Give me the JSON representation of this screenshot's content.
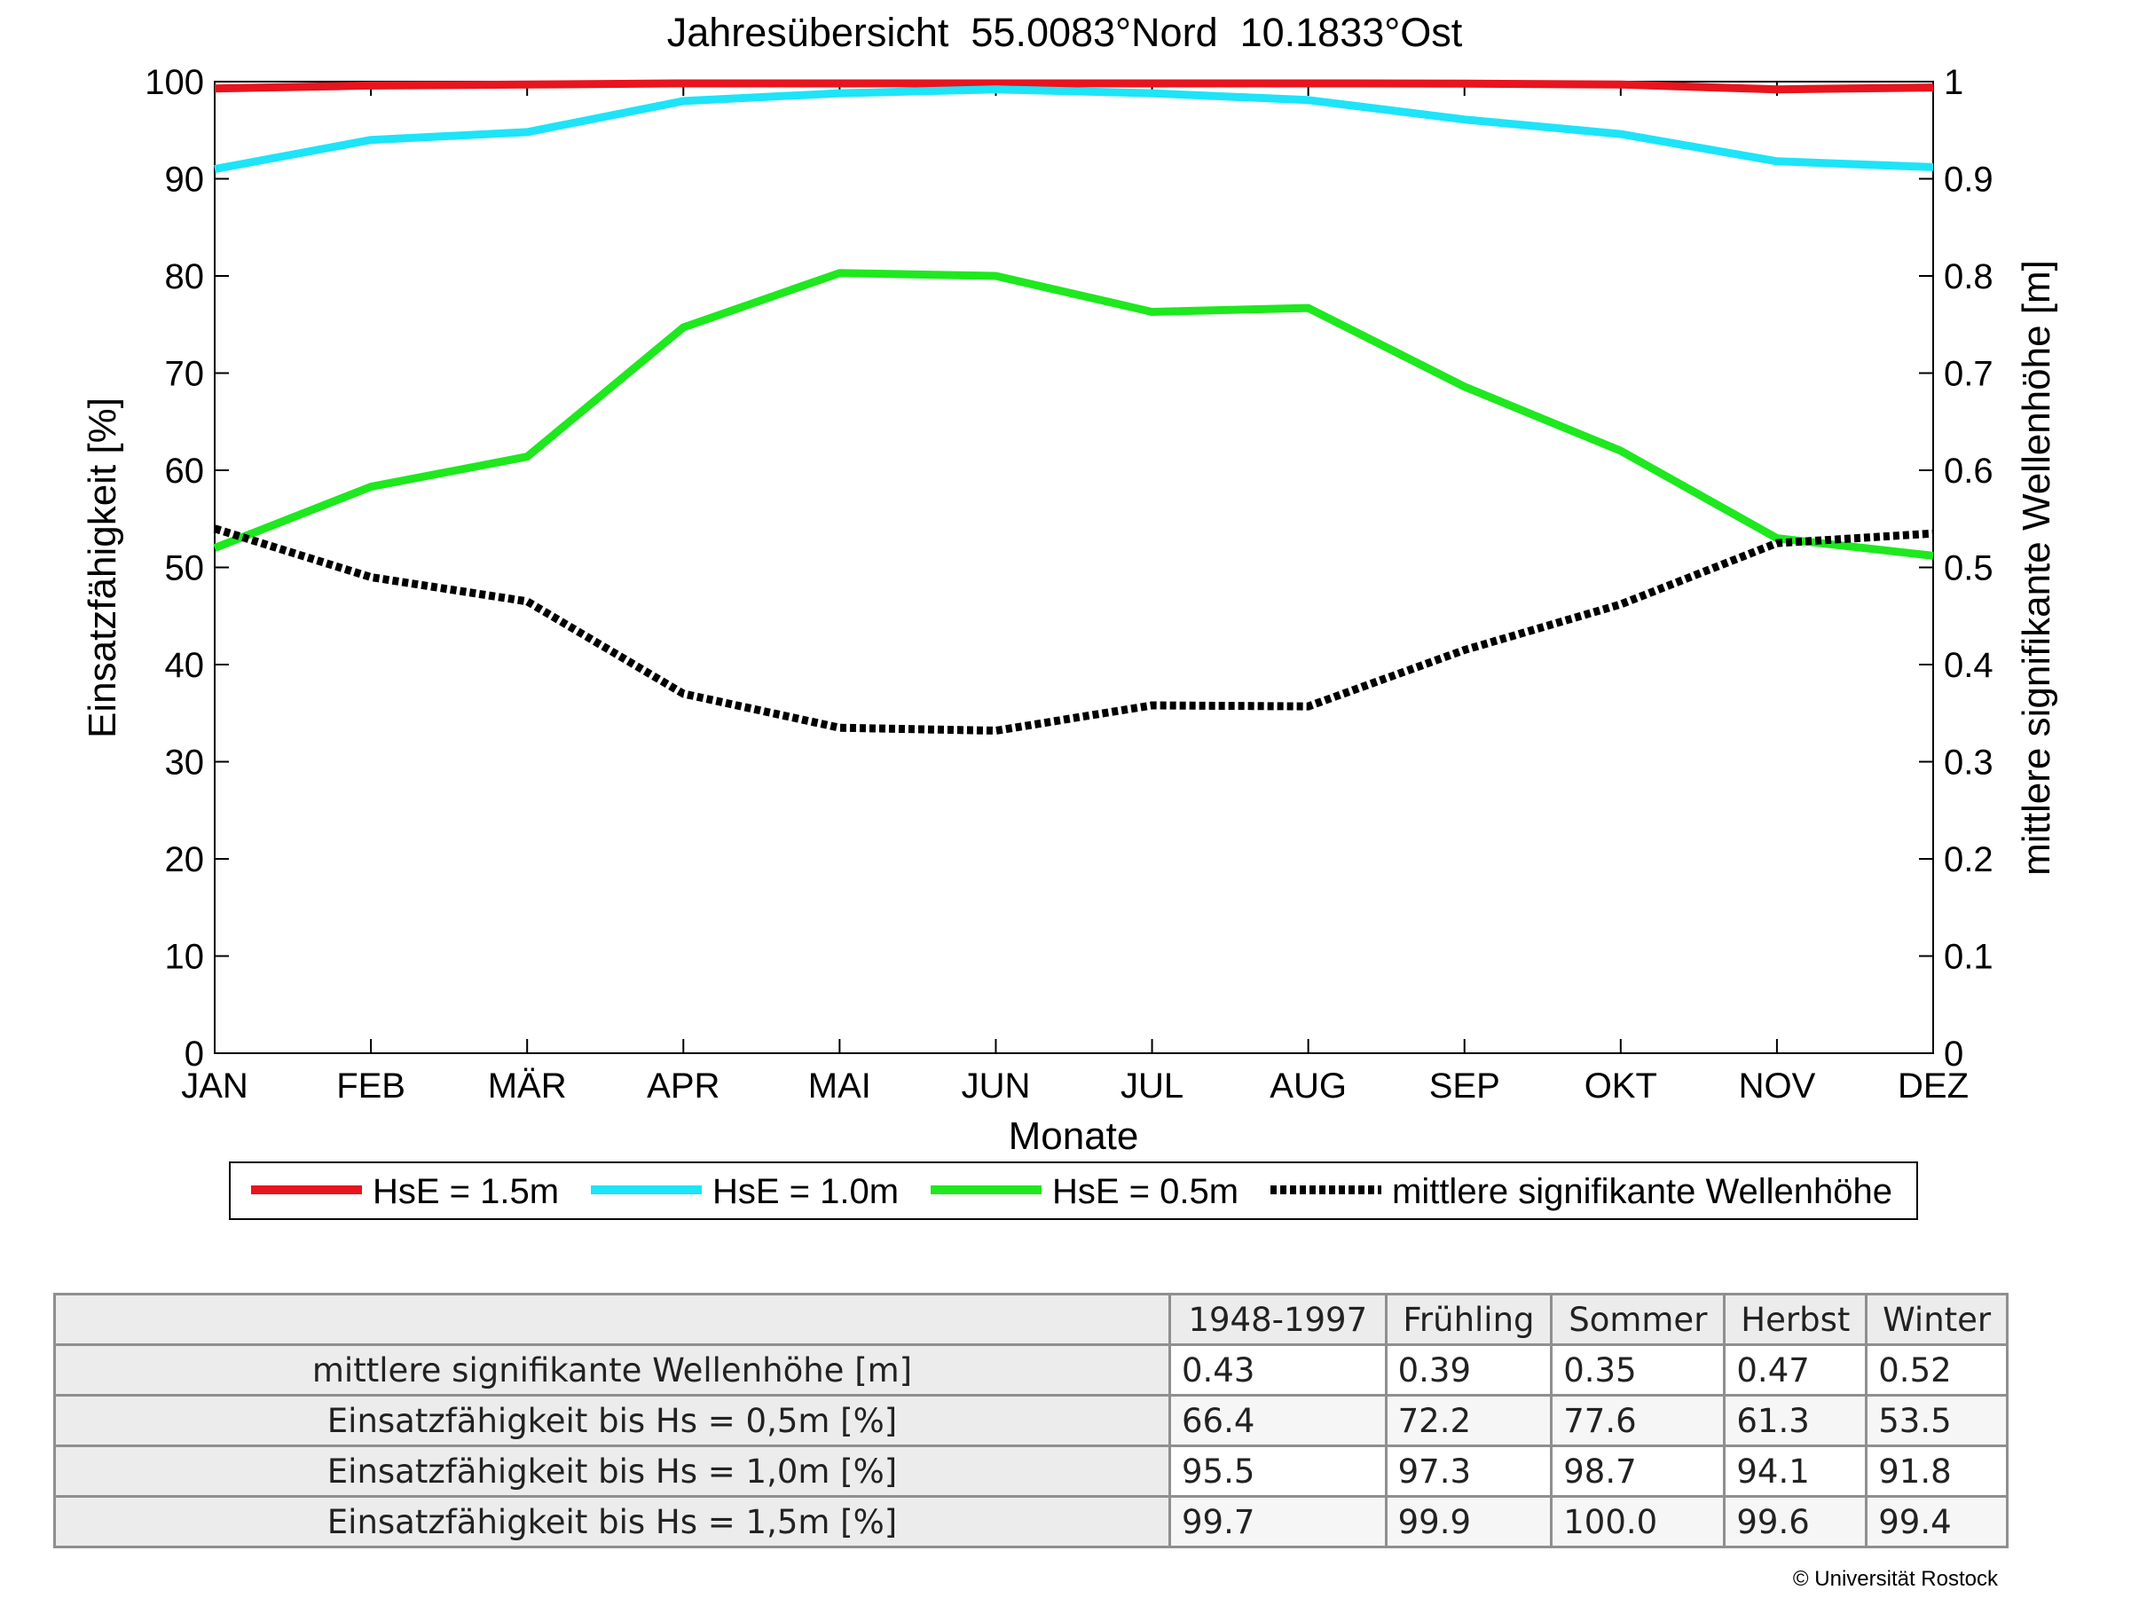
{
  "chart_data": {
    "type": "line",
    "title": "Jahresübersicht  55.0083°Nord  10.1833°Ost",
    "xlabel": "Monate",
    "ylabel": "Einsatzfähigkeit [%]",
    "ylabel_right": "mittlere signifikante Wellenhöhe [m]",
    "categories": [
      "JAN",
      "FEB",
      "MÄR",
      "APR",
      "MAI",
      "JUN",
      "JUL",
      "AUG",
      "SEP",
      "OKT",
      "NOV",
      "DEZ"
    ],
    "ylim": [
      0,
      100
    ],
    "yticks": [
      "0",
      "10",
      "20",
      "30",
      "40",
      "50",
      "60",
      "70",
      "80",
      "90",
      "100"
    ],
    "ylim_right": [
      0,
      1
    ],
    "yticks_right": [
      "0",
      "0.1",
      "0.2",
      "0.3",
      "0.4",
      "0.5",
      "0.6",
      "0.7",
      "0.8",
      "0.9",
      "1"
    ],
    "grid": false,
    "legend_position": "bottom",
    "series": [
      {
        "name": "HsE = 1.5m",
        "axis": "left",
        "color": "#e8141e",
        "style": "solid",
        "values": [
          99.3,
          99.6,
          99.7,
          99.9,
          100.0,
          100.0,
          100.0,
          99.9,
          99.8,
          99.7,
          99.2,
          99.4
        ]
      },
      {
        "name": "HsE = 1.0m",
        "axis": "left",
        "color": "#1de4f8",
        "style": "solid",
        "values": [
          91.0,
          94.0,
          94.8,
          98.0,
          98.8,
          99.2,
          98.8,
          98.1,
          96.1,
          94.6,
          91.8,
          91.2
        ]
      },
      {
        "name": "HsE = 0.5m",
        "axis": "left",
        "color": "#1ee81e",
        "style": "solid",
        "values": [
          52.0,
          58.3,
          61.4,
          74.7,
          80.3,
          80.0,
          76.3,
          76.7,
          68.6,
          62.0,
          53.0,
          51.2
        ]
      },
      {
        "name": "mittlere signifikante Wellenhöhe",
        "axis": "right",
        "color": "#000000",
        "style": "dotted",
        "values": [
          0.54,
          0.49,
          0.465,
          0.37,
          0.335,
          0.332,
          0.358,
          0.357,
          0.415,
          0.462,
          0.525,
          0.535
        ]
      }
    ]
  },
  "table": {
    "headers": [
      "1948-1997",
      "Frühling",
      "Sommer",
      "Herbst",
      "Winter"
    ],
    "rows": [
      {
        "label": "mittlere signifikante Wellenhöhe [m]",
        "values": [
          "0.43",
          "0.39",
          "0.35",
          "0.47",
          "0.52"
        ]
      },
      {
        "label": "Einsatzfähigkeit bis Hs = 0,5m [%]",
        "values": [
          "66.4",
          "72.2",
          "77.6",
          "61.3",
          "53.5"
        ]
      },
      {
        "label": "Einsatzfähigkeit bis Hs = 1,0m [%]",
        "values": [
          "95.5",
          "97.3",
          "98.7",
          "94.1",
          "91.8"
        ]
      },
      {
        "label": "Einsatzfähigkeit bis Hs = 1,5m [%]",
        "values": [
          "99.7",
          "99.9",
          "100.0",
          "99.6",
          "99.4"
        ]
      }
    ]
  },
  "copyright": "© Universität Rostock"
}
